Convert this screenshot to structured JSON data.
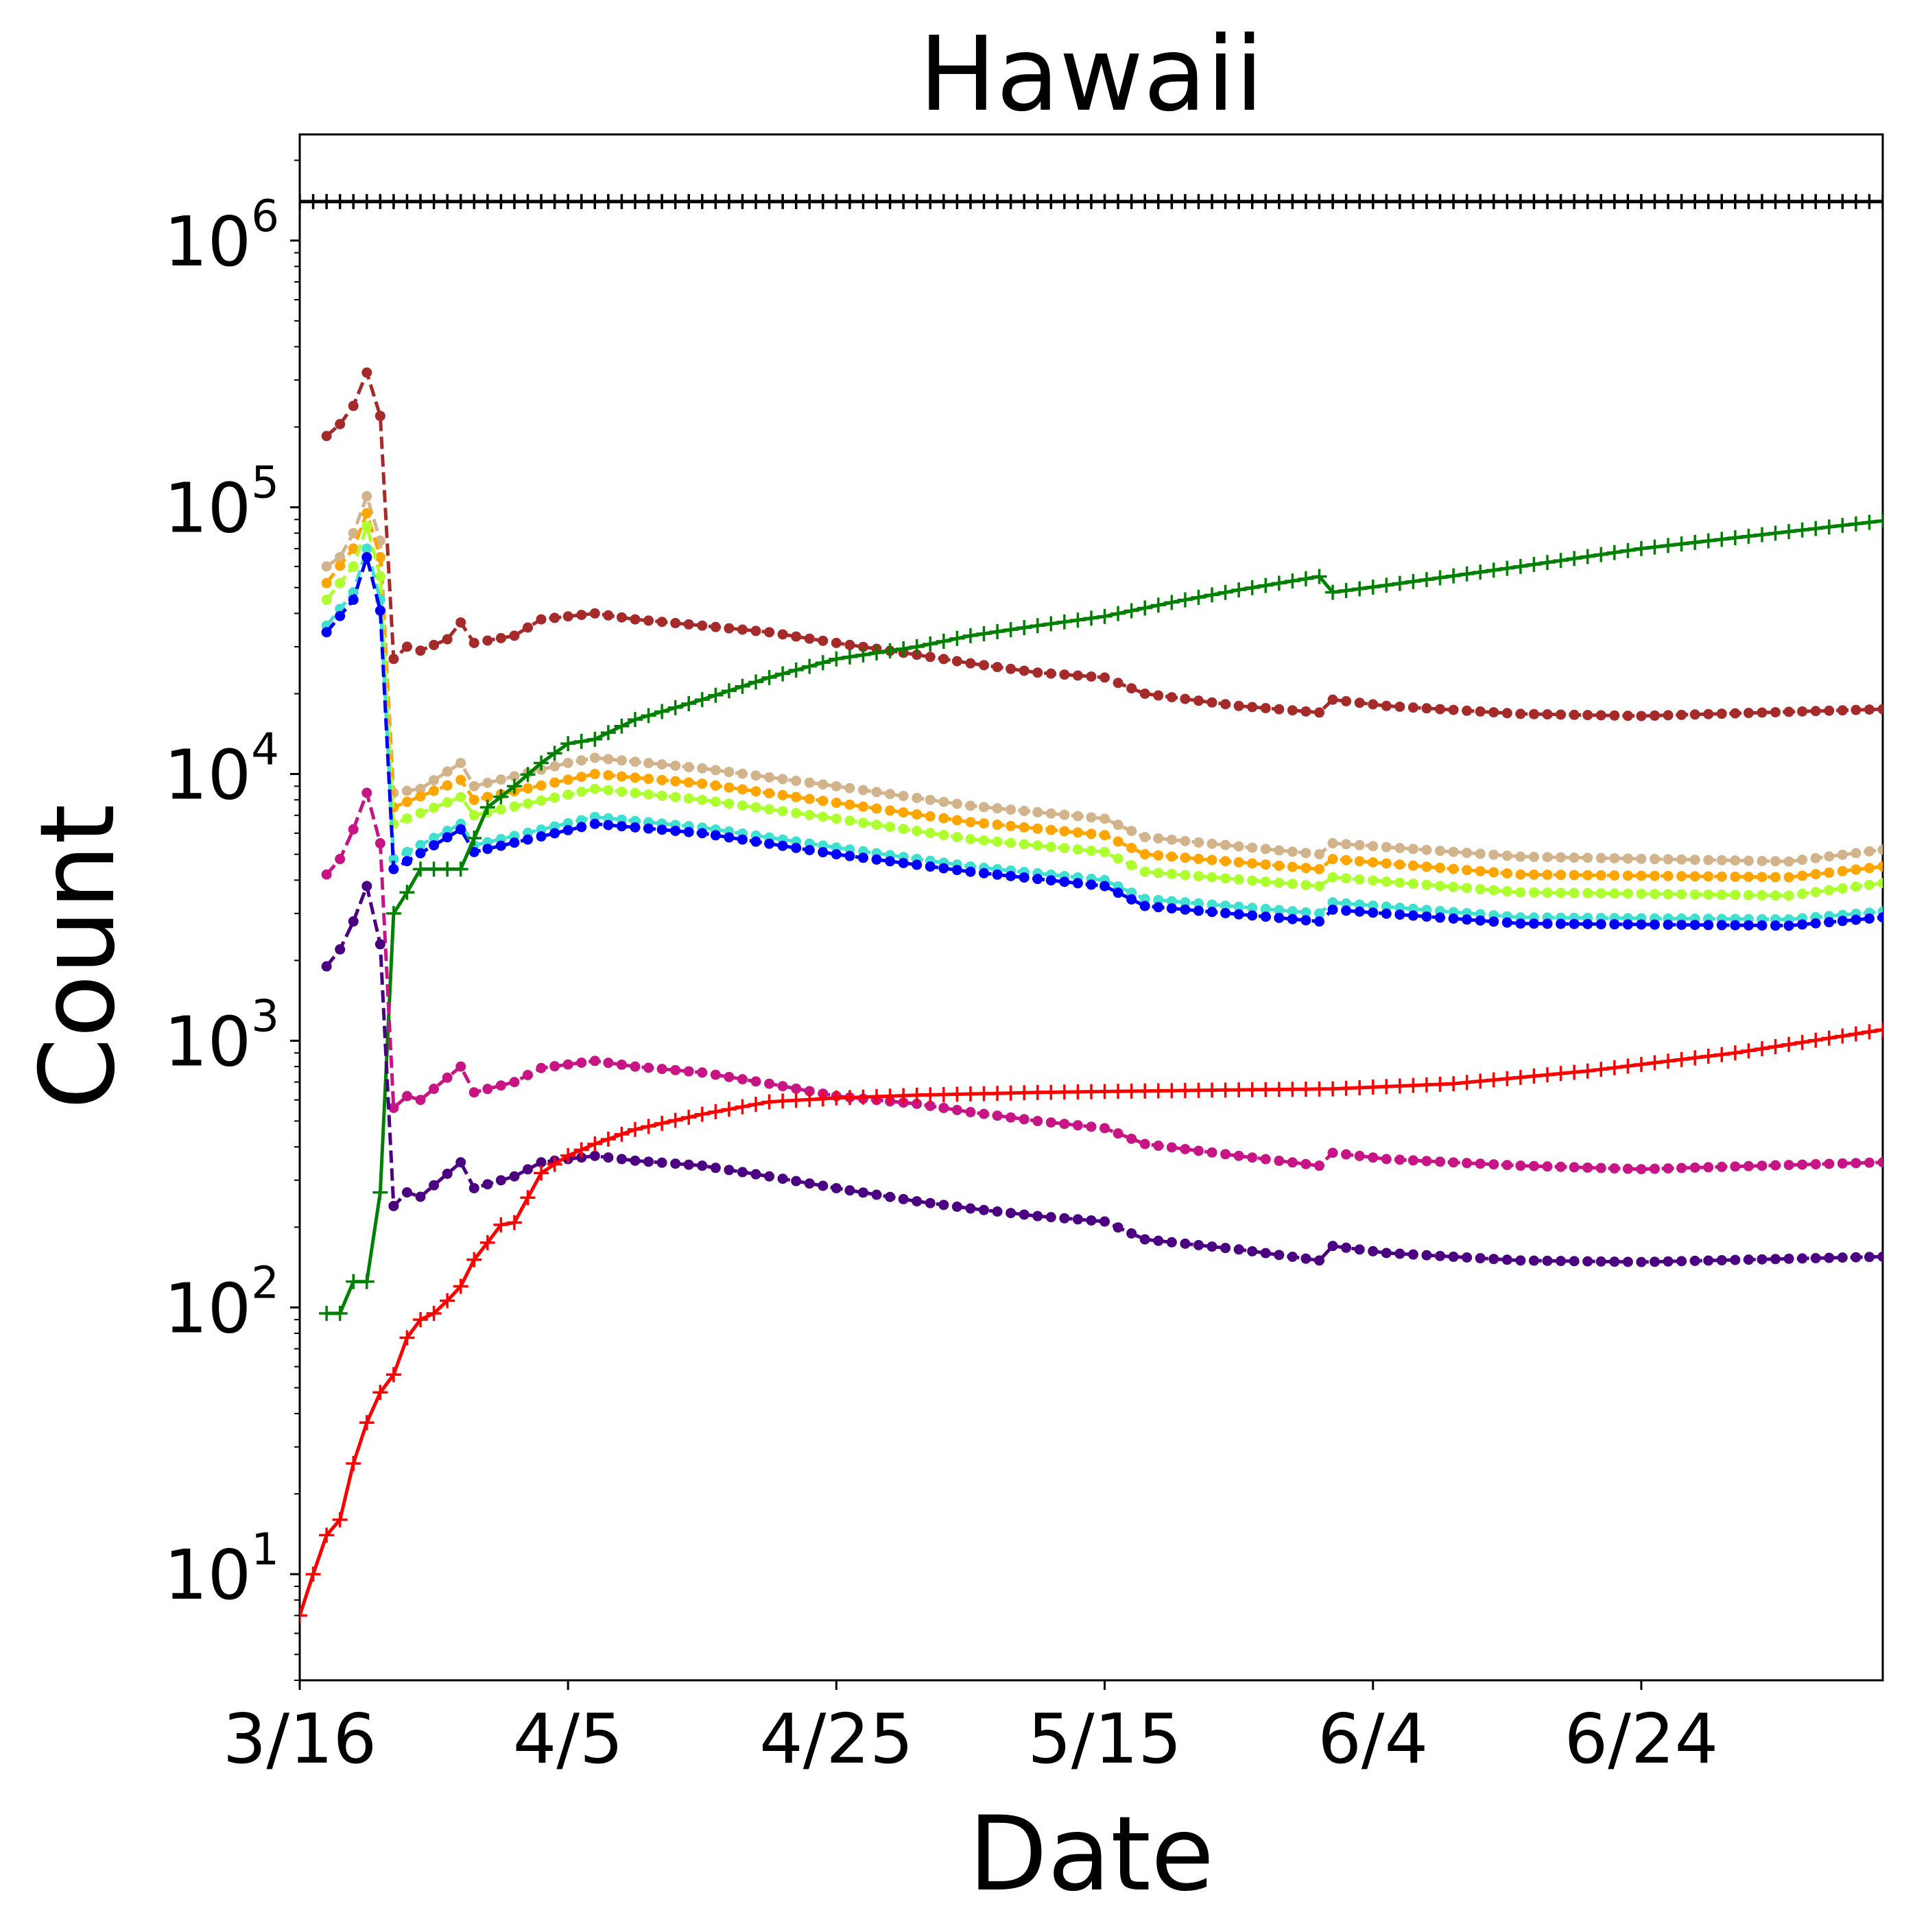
{
  "chart_data": {
    "type": "line",
    "title": "Hawaii",
    "xlabel": "Date",
    "ylabel": "Count",
    "yscale": "log",
    "ylim": [
      4,
      2500000
    ],
    "x_start": "3/16",
    "x_end": "7/12",
    "x_ticks": [
      "3/16",
      "4/5",
      "4/25",
      "5/15",
      "6/4",
      "6/24"
    ],
    "y_ticks": [
      {
        "value": 10,
        "base": "10",
        "exp": "1"
      },
      {
        "value": 100,
        "base": "10",
        "exp": "2"
      },
      {
        "value": 1000,
        "base": "10",
        "exp": "3"
      },
      {
        "value": 10000,
        "base": "10",
        "exp": "4"
      },
      {
        "value": 100000,
        "base": "10",
        "exp": "5"
      },
      {
        "value": 1000000,
        "base": "10",
        "exp": "6"
      }
    ],
    "grid": false,
    "series": [
      {
        "color": "#000000",
        "style": "solid",
        "marker": "plus",
        "points": [
          [
            "3/16",
            1400000
          ],
          [
            "7/12",
            1400000
          ]
        ]
      },
      {
        "color": "#a52a2a",
        "style": "dashed",
        "marker": "dot",
        "points": [
          [
            "3/18",
            185000
          ],
          [
            "3/19",
            205000
          ],
          [
            "3/20",
            240000
          ],
          [
            "3/21",
            320000
          ],
          [
            "3/22",
            220000
          ],
          [
            "3/23",
            27000
          ],
          [
            "3/24",
            30000
          ],
          [
            "3/25",
            29000
          ],
          [
            "3/27",
            32000
          ],
          [
            "3/28",
            37000
          ],
          [
            "3/29",
            31000
          ],
          [
            "4/1",
            33000
          ],
          [
            "4/3",
            38000
          ],
          [
            "4/7",
            40000
          ],
          [
            "4/10",
            38000
          ],
          [
            "4/15",
            36000
          ],
          [
            "4/20",
            34000
          ],
          [
            "4/25",
            31000
          ],
          [
            "5/1",
            28000
          ],
          [
            "5/5",
            26000
          ],
          [
            "5/10",
            24000
          ],
          [
            "5/15",
            23000
          ],
          [
            "5/18",
            20000
          ],
          [
            "5/25",
            18000
          ],
          [
            "5/31",
            17000
          ],
          [
            "6/1",
            19000
          ],
          [
            "6/5",
            18000
          ],
          [
            "6/15",
            16800
          ],
          [
            "6/24",
            16500
          ],
          [
            "7/12",
            17500
          ]
        ]
      },
      {
        "color": "#d2b48c",
        "style": "dashed",
        "marker": "dot",
        "points": [
          [
            "3/18",
            60000
          ],
          [
            "3/19",
            65000
          ],
          [
            "3/20",
            80000
          ],
          [
            "3/21",
            110000
          ],
          [
            "3/22",
            75000
          ],
          [
            "3/23",
            8500
          ],
          [
            "3/25",
            8800
          ],
          [
            "3/28",
            11000
          ],
          [
            "3/29",
            9000
          ],
          [
            "4/5",
            11000
          ],
          [
            "4/7",
            11500
          ],
          [
            "4/15",
            10500
          ],
          [
            "4/25",
            9000
          ],
          [
            "5/5",
            7600
          ],
          [
            "5/15",
            6800
          ],
          [
            "5/18",
            5800
          ],
          [
            "5/31",
            5000
          ],
          [
            "6/1",
            5500
          ],
          [
            "6/15",
            4900
          ],
          [
            "7/5",
            4700
          ],
          [
            "7/12",
            5200
          ]
        ]
      },
      {
        "color": "#ffa500",
        "style": "dashed",
        "marker": "dot",
        "points": [
          [
            "3/18",
            52000
          ],
          [
            "3/20",
            70000
          ],
          [
            "3/21",
            95000
          ],
          [
            "3/22",
            65000
          ],
          [
            "3/23",
            7500
          ],
          [
            "3/28",
            9500
          ],
          [
            "3/29",
            8000
          ],
          [
            "4/7",
            10000
          ],
          [
            "4/15",
            9200
          ],
          [
            "4/25",
            7800
          ],
          [
            "5/5",
            6600
          ],
          [
            "5/15",
            5900
          ],
          [
            "5/18",
            5000
          ],
          [
            "5/31",
            4400
          ],
          [
            "6/1",
            4800
          ],
          [
            "6/15",
            4200
          ],
          [
            "7/5",
            4100
          ],
          [
            "7/12",
            4500
          ]
        ]
      },
      {
        "color": "#adff2f",
        "style": "dashed",
        "marker": "dot",
        "points": [
          [
            "3/18",
            45000
          ],
          [
            "3/20",
            60000
          ],
          [
            "3/21",
            85000
          ],
          [
            "3/22",
            55000
          ],
          [
            "3/23",
            6500
          ],
          [
            "3/28",
            8200
          ],
          [
            "3/29",
            7000
          ],
          [
            "4/7",
            8800
          ],
          [
            "4/15",
            8000
          ],
          [
            "4/25",
            6800
          ],
          [
            "5/5",
            5700
          ],
          [
            "5/15",
            5100
          ],
          [
            "5/18",
            4300
          ],
          [
            "5/31",
            3800
          ],
          [
            "6/1",
            4100
          ],
          [
            "6/15",
            3600
          ],
          [
            "7/5",
            3500
          ],
          [
            "7/12",
            3900
          ]
        ]
      },
      {
        "color": "#40e0d0",
        "style": "dashed",
        "marker": "dot",
        "points": [
          [
            "3/18",
            36000
          ],
          [
            "3/20",
            48000
          ],
          [
            "3/21",
            70000
          ],
          [
            "3/22",
            45000
          ],
          [
            "3/23",
            4800
          ],
          [
            "3/28",
            6500
          ],
          [
            "3/29",
            5400
          ],
          [
            "4/7",
            6900
          ],
          [
            "4/15",
            6300
          ],
          [
            "4/25",
            5300
          ],
          [
            "5/5",
            4500
          ],
          [
            "5/15",
            4000
          ],
          [
            "5/18",
            3400
          ],
          [
            "5/31",
            3000
          ],
          [
            "6/1",
            3300
          ],
          [
            "6/15",
            2900
          ],
          [
            "7/5",
            2850
          ],
          [
            "7/12",
            3050
          ]
        ]
      },
      {
        "color": "#0000ff",
        "style": "dashed",
        "marker": "dot",
        "points": [
          [
            "3/18",
            34000
          ],
          [
            "3/20",
            45000
          ],
          [
            "3/21",
            65000
          ],
          [
            "3/22",
            41000
          ],
          [
            "3/23",
            4400
          ],
          [
            "3/28",
            6200
          ],
          [
            "3/29",
            5100
          ],
          [
            "4/7",
            6500
          ],
          [
            "4/15",
            6000
          ],
          [
            "4/25",
            5000
          ],
          [
            "5/5",
            4300
          ],
          [
            "5/15",
            3800
          ],
          [
            "5/18",
            3200
          ],
          [
            "5/31",
            2800
          ],
          [
            "6/1",
            3100
          ],
          [
            "6/15",
            2750
          ],
          [
            "7/5",
            2700
          ],
          [
            "7/12",
            2900
          ]
        ]
      },
      {
        "color": "#008000",
        "style": "solid",
        "marker": "plus",
        "points": [
          [
            "3/18",
            95
          ],
          [
            "3/19",
            95
          ],
          [
            "3/20",
            125
          ],
          [
            "3/21",
            125
          ],
          [
            "3/22",
            270
          ],
          [
            "3/23",
            3000
          ],
          [
            "3/24",
            3600
          ],
          [
            "3/25",
            4400
          ],
          [
            "3/28",
            4400
          ],
          [
            "3/30",
            7500
          ],
          [
            "4/1",
            9000
          ],
          [
            "4/3",
            11000
          ],
          [
            "4/5",
            13000
          ],
          [
            "4/7",
            13500
          ],
          [
            "4/10",
            16000
          ],
          [
            "4/15",
            19000
          ],
          [
            "4/20",
            23000
          ],
          [
            "4/25",
            27000
          ],
          [
            "5/1",
            30000
          ],
          [
            "5/5",
            33000
          ],
          [
            "5/10",
            36000
          ],
          [
            "5/15",
            39000
          ],
          [
            "5/20",
            44000
          ],
          [
            "5/25",
            49000
          ],
          [
            "5/31",
            55000
          ],
          [
            "6/1",
            48000
          ],
          [
            "6/5",
            51000
          ],
          [
            "6/15",
            60000
          ],
          [
            "6/24",
            70000
          ],
          [
            "7/12",
            89000
          ]
        ]
      },
      {
        "color": "#c71585",
        "style": "dashed",
        "marker": "dot",
        "points": [
          [
            "3/18",
            4200
          ],
          [
            "3/19",
            4800
          ],
          [
            "3/20",
            6200
          ],
          [
            "3/21",
            8500
          ],
          [
            "3/22",
            5500
          ],
          [
            "3/23",
            560
          ],
          [
            "3/24",
            620
          ],
          [
            "3/25",
            600
          ],
          [
            "3/28",
            800
          ],
          [
            "3/29",
            640
          ],
          [
            "4/1",
            700
          ],
          [
            "4/3",
            790
          ],
          [
            "4/7",
            840
          ],
          [
            "4/10",
            800
          ],
          [
            "4/15",
            760
          ],
          [
            "4/20",
            690
          ],
          [
            "4/25",
            620
          ],
          [
            "5/1",
            580
          ],
          [
            "5/5",
            540
          ],
          [
            "5/10",
            500
          ],
          [
            "5/15",
            470
          ],
          [
            "5/18",
            410
          ],
          [
            "5/25",
            370
          ],
          [
            "5/31",
            340
          ],
          [
            "6/1",
            380
          ],
          [
            "6/5",
            360
          ],
          [
            "6/15",
            340
          ],
          [
            "6/24",
            330
          ],
          [
            "7/12",
            350
          ]
        ]
      },
      {
        "color": "#4b0082",
        "style": "dashed",
        "marker": "dot",
        "points": [
          [
            "3/18",
            1900
          ],
          [
            "3/19",
            2200
          ],
          [
            "3/20",
            2800
          ],
          [
            "3/21",
            3800
          ],
          [
            "3/22",
            2300
          ],
          [
            "3/23",
            240
          ],
          [
            "3/24",
            270
          ],
          [
            "3/25",
            260
          ],
          [
            "3/28",
            350
          ],
          [
            "3/29",
            280
          ],
          [
            "4/1",
            310
          ],
          [
            "4/3",
            350
          ],
          [
            "4/7",
            370
          ],
          [
            "4/10",
            355
          ],
          [
            "4/15",
            340
          ],
          [
            "4/20",
            310
          ],
          [
            "4/25",
            280
          ],
          [
            "5/1",
            250
          ],
          [
            "5/5",
            235
          ],
          [
            "5/10",
            220
          ],
          [
            "5/15",
            210
          ],
          [
            "5/18",
            180
          ],
          [
            "5/25",
            165
          ],
          [
            "5/31",
            150
          ],
          [
            "6/1",
            170
          ],
          [
            "6/5",
            160
          ],
          [
            "6/15",
            150
          ],
          [
            "6/24",
            148
          ],
          [
            "7/12",
            155
          ]
        ]
      },
      {
        "color": "#ff0000",
        "style": "solid",
        "marker": "plus",
        "points": [
          [
            "3/16",
            7
          ],
          [
            "3/17",
            10
          ],
          [
            "3/18",
            14
          ],
          [
            "3/19",
            16
          ],
          [
            "3/20",
            26
          ],
          [
            "3/21",
            37
          ],
          [
            "3/22",
            48
          ],
          [
            "3/23",
            56
          ],
          [
            "3/24",
            77
          ],
          [
            "3/25",
            90
          ],
          [
            "3/26",
            95
          ],
          [
            "3/27",
            106
          ],
          [
            "3/28",
            120
          ],
          [
            "3/29",
            151
          ],
          [
            "3/30",
            175
          ],
          [
            "3/31",
            204
          ],
          [
            "4/1",
            208
          ],
          [
            "4/2",
            258
          ],
          [
            "4/3",
            319
          ],
          [
            "4/5",
            371
          ],
          [
            "4/7",
            410
          ],
          [
            "4/10",
            465
          ],
          [
            "4/15",
            530
          ],
          [
            "4/20",
            590
          ],
          [
            "4/25",
            610
          ],
          [
            "5/1",
            625
          ],
          [
            "5/10",
            640
          ],
          [
            "5/20",
            650
          ],
          [
            "6/1",
            660
          ],
          [
            "6/10",
            690
          ],
          [
            "6/20",
            770
          ],
          [
            "7/1",
            900
          ],
          [
            "7/12",
            1100
          ]
        ]
      }
    ]
  }
}
